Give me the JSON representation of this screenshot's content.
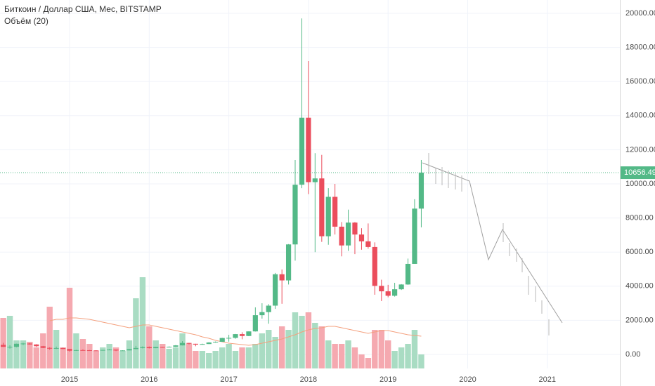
{
  "chart_data": {
    "type": "candlestick",
    "title": "Биткоин / Доллар США, Мес, BITSTAMP",
    "volume_title": "Объём (20)",
    "x": [
      2014.167,
      2014.25,
      2014.333,
      2014.417,
      2014.5,
      2014.583,
      2014.667,
      2014.75,
      2014.833,
      2014.917,
      2015.0,
      2015.083,
      2015.167,
      2015.25,
      2015.333,
      2015.417,
      2015.5,
      2015.583,
      2015.667,
      2015.75,
      2015.833,
      2015.917,
      2016.0,
      2016.083,
      2016.167,
      2016.25,
      2016.333,
      2016.417,
      2016.5,
      2016.583,
      2016.667,
      2016.75,
      2016.833,
      2016.917,
      2017.0,
      2017.083,
      2017.167,
      2017.25,
      2017.333,
      2017.417,
      2017.5,
      2017.583,
      2017.667,
      2017.75,
      2017.833,
      2017.917,
      2018.0,
      2018.083,
      2018.167,
      2018.25,
      2018.333,
      2018.417,
      2018.5,
      2018.583,
      2018.667,
      2018.75,
      2018.833,
      2018.917,
      2019.0,
      2019.083,
      2019.167,
      2019.25,
      2019.333,
      2019.417
    ],
    "open": [
      560,
      445,
      445,
      625,
      640,
      585,
      480,
      385,
      338,
      375,
      318,
      217,
      255,
      245,
      236,
      230,
      263,
      284,
      230,
      236,
      313,
      378,
      430,
      368,
      436,
      416,
      448,
      531,
      673,
      624,
      574,
      609,
      701,
      742,
      963,
      970,
      1190,
      1080,
      1350,
      2300,
      2480,
      2860,
      4700,
      4340,
      6450,
      9950,
      13880,
      10100,
      10320,
      6930,
      9240,
      7490,
      6390,
      7730,
      7030,
      6630,
      6300,
      4020,
      3700,
      3440,
      3820,
      4100,
      5310,
      8550
    ],
    "high": [
      680,
      540,
      630,
      680,
      660,
      600,
      500,
      420,
      460,
      400,
      320,
      265,
      300,
      260,
      248,
      270,
      315,
      285,
      245,
      330,
      500,
      470,
      465,
      445,
      440,
      470,
      550,
      780,
      680,
      625,
      630,
      720,
      760,
      975,
      1150,
      1200,
      1300,
      1350,
      2760,
      3000,
      2950,
      4780,
      4980,
      6470,
      11400,
      19700,
      17200,
      11800,
      11700,
      9750,
      10000,
      7760,
      8490,
      7760,
      7400,
      7680,
      6570,
      4380,
      4080,
      4200,
      4120,
      5620,
      9100,
      11400
    ],
    "low": [
      440,
      340,
      420,
      540,
      570,
      440,
      370,
      275,
      315,
      305,
      166,
      205,
      235,
      212,
      225,
      220,
      255,
      195,
      225,
      235,
      300,
      350,
      350,
      365,
      395,
      415,
      435,
      525,
      585,
      480,
      570,
      605,
      685,
      740,
      750,
      920,
      890,
      1070,
      1340,
      2100,
      1800,
      2670,
      2970,
      4100,
      5500,
      9750,
      9400,
      6000,
      6600,
      6430,
      7030,
      5750,
      6070,
      5880,
      6140,
      6200,
      3500,
      3130,
      3350,
      3390,
      3780,
      4080,
      5320,
      7450
    ],
    "close": [
      445,
      445,
      625,
      640,
      585,
      480,
      385,
      338,
      375,
      318,
      217,
      255,
      245,
      236,
      230,
      263,
      284,
      230,
      236,
      313,
      378,
      430,
      368,
      436,
      416,
      448,
      531,
      673,
      624,
      574,
      609,
      701,
      742,
      963,
      970,
      1190,
      1080,
      1350,
      2300,
      2480,
      2860,
      4700,
      4340,
      6450,
      9950,
      13880,
      10100,
      10320,
      6930,
      9240,
      7490,
      6390,
      7730,
      7030,
      6630,
      6300,
      4020,
      3700,
      3440,
      3820,
      4100,
      5310,
      8550,
      10656.49
    ],
    "volume": [
      72,
      75,
      40,
      40,
      38,
      30,
      50,
      88,
      55,
      30,
      115,
      50,
      42,
      35,
      25,
      30,
      35,
      30,
      25,
      40,
      100,
      130,
      60,
      40,
      35,
      28,
      30,
      50,
      35,
      25,
      25,
      22,
      25,
      30,
      35,
      25,
      30,
      30,
      35,
      50,
      55,
      45,
      60,
      55,
      80,
      75,
      80,
      65,
      60,
      40,
      35,
      35,
      40,
      30,
      20,
      15,
      55,
      55,
      40,
      25,
      30,
      35,
      55,
      20
    ],
    "volume_ma": [
      null,
      null,
      null,
      null,
      null,
      null,
      null,
      68,
      70,
      70,
      72,
      72,
      71,
      70,
      68,
      66,
      64,
      62,
      60,
      58,
      60,
      62,
      62,
      60,
      58,
      56,
      54,
      52,
      50,
      48,
      45,
      43,
      40,
      38,
      36,
      35,
      34,
      33,
      34,
      36,
      38,
      40,
      42,
      45,
      48,
      52,
      55,
      57,
      58,
      60,
      60,
      58,
      56,
      54,
      52,
      50,
      52,
      54,
      54,
      52,
      50,
      48,
      47,
      46
    ],
    "up_color": "#53b987",
    "down_color": "#eb4d5c",
    "volume_up_color": "#a9dcc3",
    "volume_down_color": "#f5a9b0",
    "volume_ma_color": "#f4a07e",
    "xlim": [
      2014.126,
      2021.911
    ],
    "xticks": [
      2015,
      2016,
      2017,
      2018,
      2019,
      2020,
      2021
    ],
    "ylim": [
      -823,
      20782
    ],
    "yticks": [
      {
        "value": 0,
        "label": "0.00"
      },
      {
        "value": 2000,
        "label": "2000.00"
      },
      {
        "value": 4000,
        "label": "4000.00"
      },
      {
        "value": 6000,
        "label": "6000.00"
      },
      {
        "value": 8000,
        "label": "8000.00"
      },
      {
        "value": 10000,
        "label": "10000.00"
      },
      {
        "value": 12000,
        "label": "12000.00"
      },
      {
        "value": 14000,
        "label": "14000.00"
      },
      {
        "value": 16000,
        "label": "16000.00"
      },
      {
        "value": 18000,
        "label": "18000.00"
      },
      {
        "value": 20000,
        "label": "20000.00"
      }
    ],
    "last_price": {
      "value": 10656.49,
      "label": "10656.49"
    },
    "grid": true
  }
}
